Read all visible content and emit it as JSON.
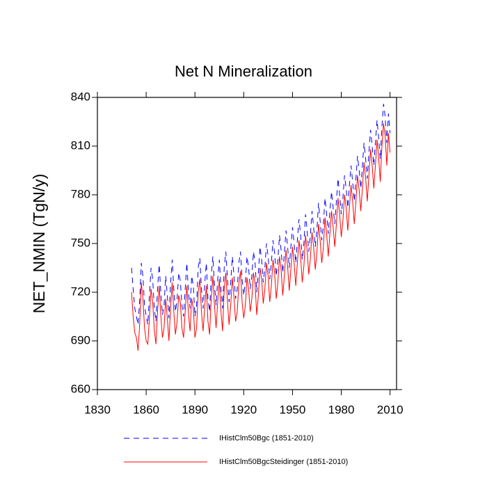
{
  "chart_data": {
    "type": "line",
    "title": "Net N Mineralization",
    "y_label": "NET_NMIN  (TgN/y)",
    "x": [
      1851,
      1852,
      1853,
      1854,
      1855,
      1856,
      1857,
      1858,
      1859,
      1860,
      1861,
      1862,
      1863,
      1864,
      1865,
      1866,
      1867,
      1868,
      1869,
      1870,
      1871,
      1872,
      1873,
      1874,
      1875,
      1876,
      1877,
      1878,
      1879,
      1880,
      1881,
      1882,
      1883,
      1884,
      1885,
      1886,
      1887,
      1888,
      1889,
      1890,
      1891,
      1892,
      1893,
      1894,
      1895,
      1896,
      1897,
      1898,
      1899,
      1900,
      1901,
      1902,
      1903,
      1904,
      1905,
      1906,
      1907,
      1908,
      1909,
      1910,
      1911,
      1912,
      1913,
      1914,
      1915,
      1916,
      1917,
      1918,
      1919,
      1920,
      1921,
      1922,
      1923,
      1924,
      1925,
      1926,
      1927,
      1928,
      1929,
      1930,
      1931,
      1932,
      1933,
      1934,
      1935,
      1936,
      1937,
      1938,
      1939,
      1940,
      1941,
      1942,
      1943,
      1944,
      1945,
      1946,
      1947,
      1948,
      1949,
      1950,
      1951,
      1952,
      1953,
      1954,
      1955,
      1956,
      1957,
      1958,
      1959,
      1960,
      1961,
      1962,
      1963,
      1964,
      1965,
      1966,
      1967,
      1968,
      1969,
      1970,
      1971,
      1972,
      1973,
      1974,
      1975,
      1976,
      1977,
      1978,
      1979,
      1980,
      1981,
      1982,
      1983,
      1984,
      1985,
      1986,
      1987,
      1988,
      1989,
      1990,
      1991,
      1992,
      1993,
      1994,
      1995,
      1996,
      1997,
      1998,
      1999,
      2000,
      2001,
      2002,
      2003,
      2004,
      2005,
      2006,
      2007,
      2008,
      2009,
      2010
    ],
    "series": [
      {
        "name": "IHistClm50Bgc (1851-2010)",
        "color": "#0000ff",
        "dashed": true,
        "values": [
          735,
          722,
          710,
          705,
          700,
          715,
          738,
          730,
          712,
          705,
          700,
          718,
          735,
          728,
          710,
          702,
          722,
          737,
          720,
          706,
          712,
          730,
          718,
          704,
          725,
          740,
          722,
          708,
          715,
          732,
          727,
          712,
          705,
          722,
          738,
          720,
          710,
          730,
          724,
          705,
          712,
          735,
          741,
          722,
          710,
          725,
          738,
          716,
          708,
          730,
          742,
          725,
          712,
          728,
          740,
          722,
          710,
          735,
          745,
          728,
          714,
          726,
          742,
          730,
          716,
          722,
          738,
          745,
          728,
          718,
          726,
          742,
          735,
          722,
          730,
          745,
          738,
          720,
          732,
          748,
          740,
          726,
          735,
          750,
          742,
          728,
          738,
          752,
          744,
          730,
          740,
          755,
          746,
          732,
          744,
          758,
          748,
          735,
          748,
          760,
          750,
          738,
          752,
          765,
          755,
          740,
          750,
          768,
          758,
          745,
          755,
          770,
          760,
          748,
          758,
          775,
          764,
          752,
          762,
          778,
          768,
          756,
          770,
          782,
          772,
          762,
          776,
          790,
          780,
          768,
          778,
          792,
          784,
          772,
          786,
          798,
          788,
          776,
          790,
          804,
          795,
          784,
          798,
          812,
          802,
          790,
          806,
          820,
          810,
          798,
          812,
          826,
          815,
          802,
          822,
          836,
          828,
          812,
          830,
          818
        ]
      },
      {
        "name": "IHistClm50BgcSteidinger (1851-2010)",
        "color": "#ff0000",
        "dashed": false,
        "values": [
          720,
          705,
          695,
          692,
          684,
          700,
          726,
          716,
          698,
          690,
          688,
          704,
          722,
          714,
          697,
          688,
          708,
          724,
          706,
          692,
          698,
          716,
          704,
          690,
          710,
          726,
          708,
          694,
          702,
          718,
          714,
          698,
          692,
          708,
          724,
          707,
          696,
          716,
          710,
          692,
          698,
          720,
          728,
          708,
          696,
          711,
          724,
          702,
          694,
          716,
          730,
          712,
          698,
          714,
          728,
          708,
          696,
          722,
          732,
          714,
          700,
          712,
          729,
          717,
          702,
          708,
          725,
          733,
          714,
          704,
          712,
          729,
          722,
          708,
          716,
          732,
          725,
          706,
          718,
          735,
          728,
          713,
          722,
          738,
          730,
          714,
          724,
          740,
          732,
          716,
          726,
          742,
          734,
          718,
          730,
          746,
          736,
          721,
          734,
          748,
          738,
          724,
          738,
          752,
          742,
          726,
          736,
          755,
          746,
          731,
          741,
          757,
          748,
          734,
          744,
          762,
          752,
          738,
          748,
          766,
          756,
          742,
          756,
          770,
          760,
          748,
          762,
          778,
          768,
          754,
          764,
          780,
          772,
          758,
          772,
          786,
          776,
          762,
          776,
          792,
          783,
          770,
          784,
          800,
          790,
          776,
          792,
          808,
          798,
          784,
          798,
          814,
          803,
          788,
          810,
          824,
          816,
          798,
          818,
          806
        ]
      }
    ],
    "xlim": [
      1830,
      2014
    ],
    "xticks": [
      1830,
      1860,
      1890,
      1920,
      1950,
      1980,
      2010
    ],
    "ylim": [
      660,
      840
    ],
    "yticks": [
      660,
      690,
      720,
      750,
      780,
      810,
      840
    ]
  }
}
